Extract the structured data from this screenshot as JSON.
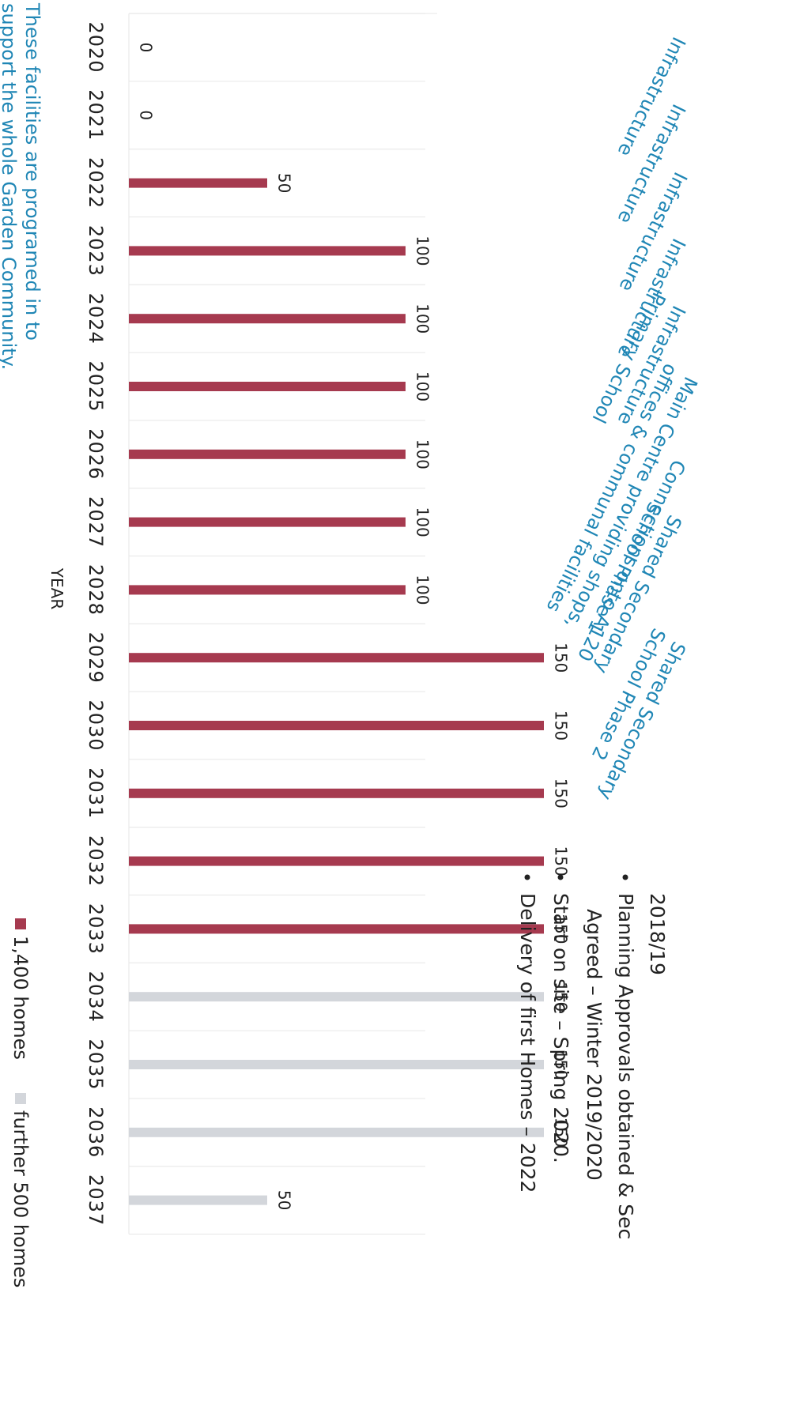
{
  "chart_data": {
    "type": "bar",
    "xlabel": "YEAR",
    "ylabel": "",
    "categories": [
      "2020",
      "2021",
      "2022",
      "2023",
      "2024",
      "2025",
      "2026",
      "2027",
      "2028",
      "2029",
      "2030",
      "2031",
      "2032",
      "2033",
      "2034",
      "2035",
      "2036",
      "2037"
    ],
    "series": [
      {
        "name": "1,400 homes",
        "color": "#a63a4f",
        "values": [
          0,
          0,
          50,
          100,
          100,
          100,
          100,
          100,
          100,
          150,
          150,
          150,
          150,
          150,
          null,
          null,
          null,
          null
        ]
      },
      {
        "name": "further 500 homes",
        "color": "#d3d6db",
        "values": [
          null,
          null,
          null,
          null,
          null,
          null,
          null,
          null,
          null,
          null,
          null,
          null,
          null,
          null,
          150,
          150,
          150,
          50
        ]
      }
    ],
    "ylim": [
      0,
      150
    ],
    "legend_position": "bottom"
  },
  "annotations": [
    {
      "year": "2020",
      "lines": [
        "Infrastructure"
      ]
    },
    {
      "year": "2021",
      "lines": [
        "Infrastructure"
      ]
    },
    {
      "year": "2022",
      "lines": [
        "Infrastructure"
      ]
    },
    {
      "year": "2023",
      "lines": [
        "Infrastructure"
      ]
    },
    {
      "year": "2024",
      "lines": [
        "Infrastructure",
        "Primary School"
      ]
    },
    {
      "year": "2025",
      "lines": [
        "Main Centre providing shops,",
        "offices & communal facilities"
      ]
    },
    {
      "year": "2026",
      "lines": [
        "Connections onto A120"
      ]
    },
    {
      "year": "2027",
      "lines": [
        "Shared Secondary",
        "School Phase 1"
      ]
    },
    {
      "year": "2030",
      "lines": [
        "Shared Secondary",
        "School Phase 2"
      ]
    }
  ],
  "milestones": {
    "heading": "2018/19",
    "items": [
      "Planning Approvals obtained & Sec",
      "Agreed – Winter 2019/2020",
      "Start on site – Spring 2020.",
      "Delivery of first Homes – 2022"
    ]
  },
  "note": [
    "These facilities are programed in to",
    "support the whole Garden Community."
  ],
  "colors": {
    "primary": "#a63a4f",
    "secondary": "#d3d6db",
    "annotation": "#1f86b5"
  }
}
